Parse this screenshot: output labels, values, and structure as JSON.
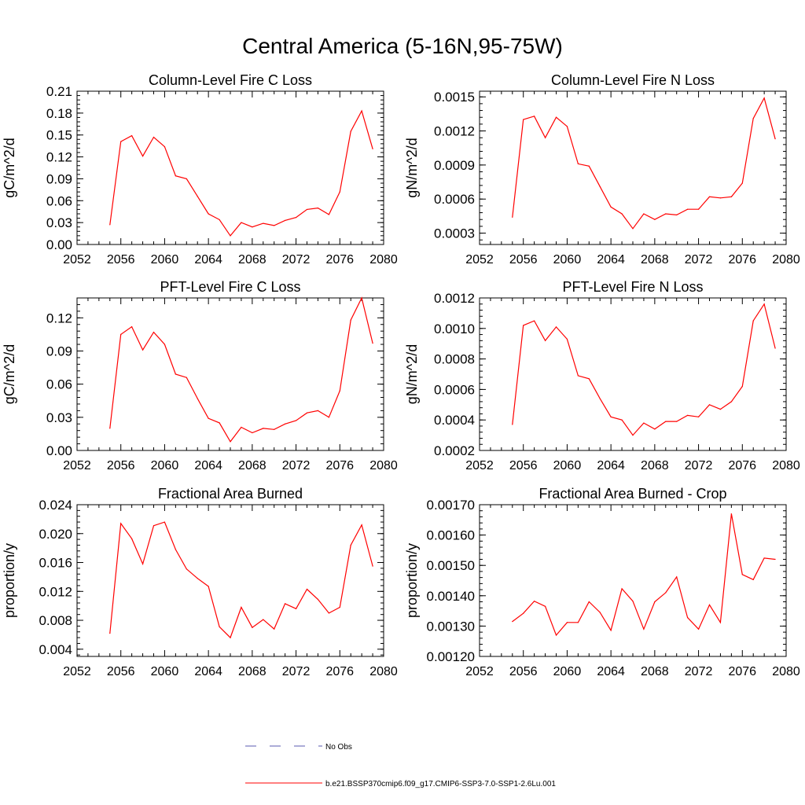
{
  "figure": {
    "title": "Central America (5-16N,95-75W)"
  },
  "legend": [
    {
      "label": "No Obs",
      "color": "#5a5ab0",
      "dashed": true
    },
    {
      "label": "b.e21.BSSP370cmip6.f09_g17.CMIP6-SSP3-7.0-SSP1-2.6Lu.001",
      "color": "#ff0000",
      "dashed": false
    }
  ],
  "chart_data": [
    {
      "type": "line",
      "title": "Column-Level Fire C Loss",
      "xlabel": "",
      "ylabel": "gC/m^2/d",
      "xlim": [
        2052,
        2080
      ],
      "ylim": [
        0,
        0.21
      ],
      "xticks": [
        "2052",
        "2056",
        "2060",
        "2064",
        "2068",
        "2072",
        "2076",
        "2080"
      ],
      "yticks": [
        "0.00",
        "0.03",
        "0.06",
        "0.09",
        "0.12",
        "0.15",
        "0.18",
        "0.21"
      ],
      "series": [
        {
          "color": "#ff0000",
          "x": [
            2055,
            2056,
            2057,
            2058,
            2059,
            2060,
            2061,
            2062,
            2063,
            2064,
            2065,
            2066,
            2067,
            2068,
            2069,
            2070,
            2071,
            2072,
            2073,
            2074,
            2075,
            2076,
            2077,
            2078,
            2079
          ],
          "y": [
            0.027,
            0.141,
            0.149,
            0.121,
            0.147,
            0.134,
            0.094,
            0.09,
            0.066,
            0.042,
            0.034,
            0.012,
            0.03,
            0.024,
            0.029,
            0.026,
            0.033,
            0.037,
            0.048,
            0.05,
            0.041,
            0.072,
            0.155,
            0.183,
            0.131
          ]
        }
      ]
    },
    {
      "type": "line",
      "title": "Column-Level Fire N Loss",
      "xlabel": "",
      "ylabel": "gN/m^2/d",
      "xlim": [
        2052,
        2080
      ],
      "ylim": [
        0.0002,
        0.00155
      ],
      "xticks": [
        "2052",
        "2056",
        "2060",
        "2064",
        "2068",
        "2072",
        "2076",
        "2080"
      ],
      "yticks": [
        "0.0003",
        "0.0006",
        "0.0009",
        "0.0012",
        "0.0015"
      ],
      "series": [
        {
          "color": "#ff0000",
          "x": [
            2055,
            2056,
            2057,
            2058,
            2059,
            2060,
            2061,
            2062,
            2063,
            2064,
            2065,
            2066,
            2067,
            2068,
            2069,
            2070,
            2071,
            2072,
            2073,
            2074,
            2075,
            2076,
            2077,
            2078,
            2079
          ],
          "y": [
            0.00044,
            0.0013,
            0.00133,
            0.00114,
            0.00132,
            0.00124,
            0.00091,
            0.00089,
            0.00071,
            0.00053,
            0.00047,
            0.00034,
            0.00047,
            0.00042,
            0.00047,
            0.00046,
            0.00051,
            0.00051,
            0.00062,
            0.00061,
            0.00062,
            0.00074,
            0.00131,
            0.00149,
            0.00113
          ]
        }
      ]
    },
    {
      "type": "line",
      "title": "PFT-Level Fire C Loss",
      "xlabel": "",
      "ylabel": "gC/m^2/d",
      "xlim": [
        2052,
        2080
      ],
      "ylim": [
        0,
        0.138
      ],
      "xticks": [
        "2052",
        "2056",
        "2060",
        "2064",
        "2068",
        "2072",
        "2076",
        "2080"
      ],
      "yticks": [
        "0.00",
        "0.03",
        "0.06",
        "0.09",
        "0.12"
      ],
      "series": [
        {
          "color": "#ff0000",
          "x": [
            2055,
            2056,
            2057,
            2058,
            2059,
            2060,
            2061,
            2062,
            2063,
            2064,
            2065,
            2066,
            2067,
            2068,
            2069,
            2070,
            2071,
            2072,
            2073,
            2074,
            2075,
            2076,
            2077,
            2078,
            2079
          ],
          "y": [
            0.02,
            0.105,
            0.112,
            0.091,
            0.107,
            0.096,
            0.069,
            0.066,
            0.047,
            0.029,
            0.025,
            0.008,
            0.021,
            0.016,
            0.02,
            0.019,
            0.024,
            0.027,
            0.034,
            0.036,
            0.03,
            0.054,
            0.118,
            0.138,
            0.097
          ]
        }
      ]
    },
    {
      "type": "line",
      "title": "PFT-Level Fire N Loss",
      "xlabel": "",
      "ylabel": "gN/m^2/d",
      "xlim": [
        2052,
        2080
      ],
      "ylim": [
        0.0002,
        0.0012
      ],
      "xticks": [
        "2052",
        "2056",
        "2060",
        "2064",
        "2068",
        "2072",
        "2076",
        "2080"
      ],
      "yticks": [
        "0.0002",
        "0.0004",
        "0.0006",
        "0.0008",
        "0.0010",
        "0.0012"
      ],
      "series": [
        {
          "color": "#ff0000",
          "x": [
            2055,
            2056,
            2057,
            2058,
            2059,
            2060,
            2061,
            2062,
            2063,
            2064,
            2065,
            2066,
            2067,
            2068,
            2069,
            2070,
            2071,
            2072,
            2073,
            2074,
            2075,
            2076,
            2077,
            2078,
            2079
          ],
          "y": [
            0.00037,
            0.00102,
            0.00105,
            0.00092,
            0.00101,
            0.00093,
            0.00069,
            0.00067,
            0.00054,
            0.00042,
            0.0004,
            0.0003,
            0.00038,
            0.00034,
            0.00039,
            0.00039,
            0.00043,
            0.00042,
            0.0005,
            0.00047,
            0.00052,
            0.00062,
            0.00105,
            0.00116,
            0.00087
          ]
        }
      ]
    },
    {
      "type": "line",
      "title": "Fractional Area Burned",
      "xlabel": "",
      "ylabel": "proportion/y",
      "xlim": [
        2052,
        2080
      ],
      "ylim": [
        0.003,
        0.024
      ],
      "xticks": [
        "2052",
        "2056",
        "2060",
        "2064",
        "2068",
        "2072",
        "2076",
        "2080"
      ],
      "yticks": [
        "0.004",
        "0.008",
        "0.012",
        "0.016",
        "0.020",
        "0.024"
      ],
      "series": [
        {
          "color": "#ff0000",
          "x": [
            2055,
            2056,
            2057,
            2058,
            2059,
            2060,
            2061,
            2062,
            2063,
            2064,
            2065,
            2066,
            2067,
            2068,
            2069,
            2070,
            2071,
            2072,
            2073,
            2074,
            2075,
            2076,
            2077,
            2078,
            2079
          ],
          "y": [
            0.0062,
            0.0214,
            0.0193,
            0.0158,
            0.0211,
            0.0216,
            0.0178,
            0.0151,
            0.0138,
            0.0127,
            0.0071,
            0.0056,
            0.0098,
            0.007,
            0.0081,
            0.0068,
            0.0103,
            0.0096,
            0.0123,
            0.0109,
            0.009,
            0.0098,
            0.0184,
            0.0212,
            0.0155
          ]
        }
      ]
    },
    {
      "type": "line",
      "title": "Fractional Area Burned - Crop",
      "xlabel": "",
      "ylabel": "proportion/y",
      "xlim": [
        2052,
        2080
      ],
      "ylim": [
        0.0012,
        0.0017
      ],
      "xticks": [
        "2052",
        "2056",
        "2060",
        "2064",
        "2068",
        "2072",
        "2076",
        "2080"
      ],
      "yticks": [
        "0.00120",
        "0.00130",
        "0.00140",
        "0.00150",
        "0.00160",
        "0.00170"
      ],
      "series": [
        {
          "color": "#ff0000",
          "x": [
            2055,
            2056,
            2057,
            2058,
            2059,
            2060,
            2061,
            2062,
            2063,
            2064,
            2065,
            2066,
            2067,
            2068,
            2069,
            2070,
            2071,
            2072,
            2073,
            2074,
            2075,
            2076,
            2077,
            2078,
            2079
          ],
          "y": [
            0.001315,
            0.001342,
            0.001382,
            0.001365,
            0.00127,
            0.001312,
            0.001312,
            0.00138,
            0.001345,
            0.001286,
            0.001423,
            0.001382,
            0.00129,
            0.00138,
            0.00141,
            0.001462,
            0.001328,
            0.00129,
            0.00137,
            0.001312,
            0.00167,
            0.00147,
            0.001453,
            0.001524,
            0.00152
          ]
        }
      ]
    }
  ]
}
